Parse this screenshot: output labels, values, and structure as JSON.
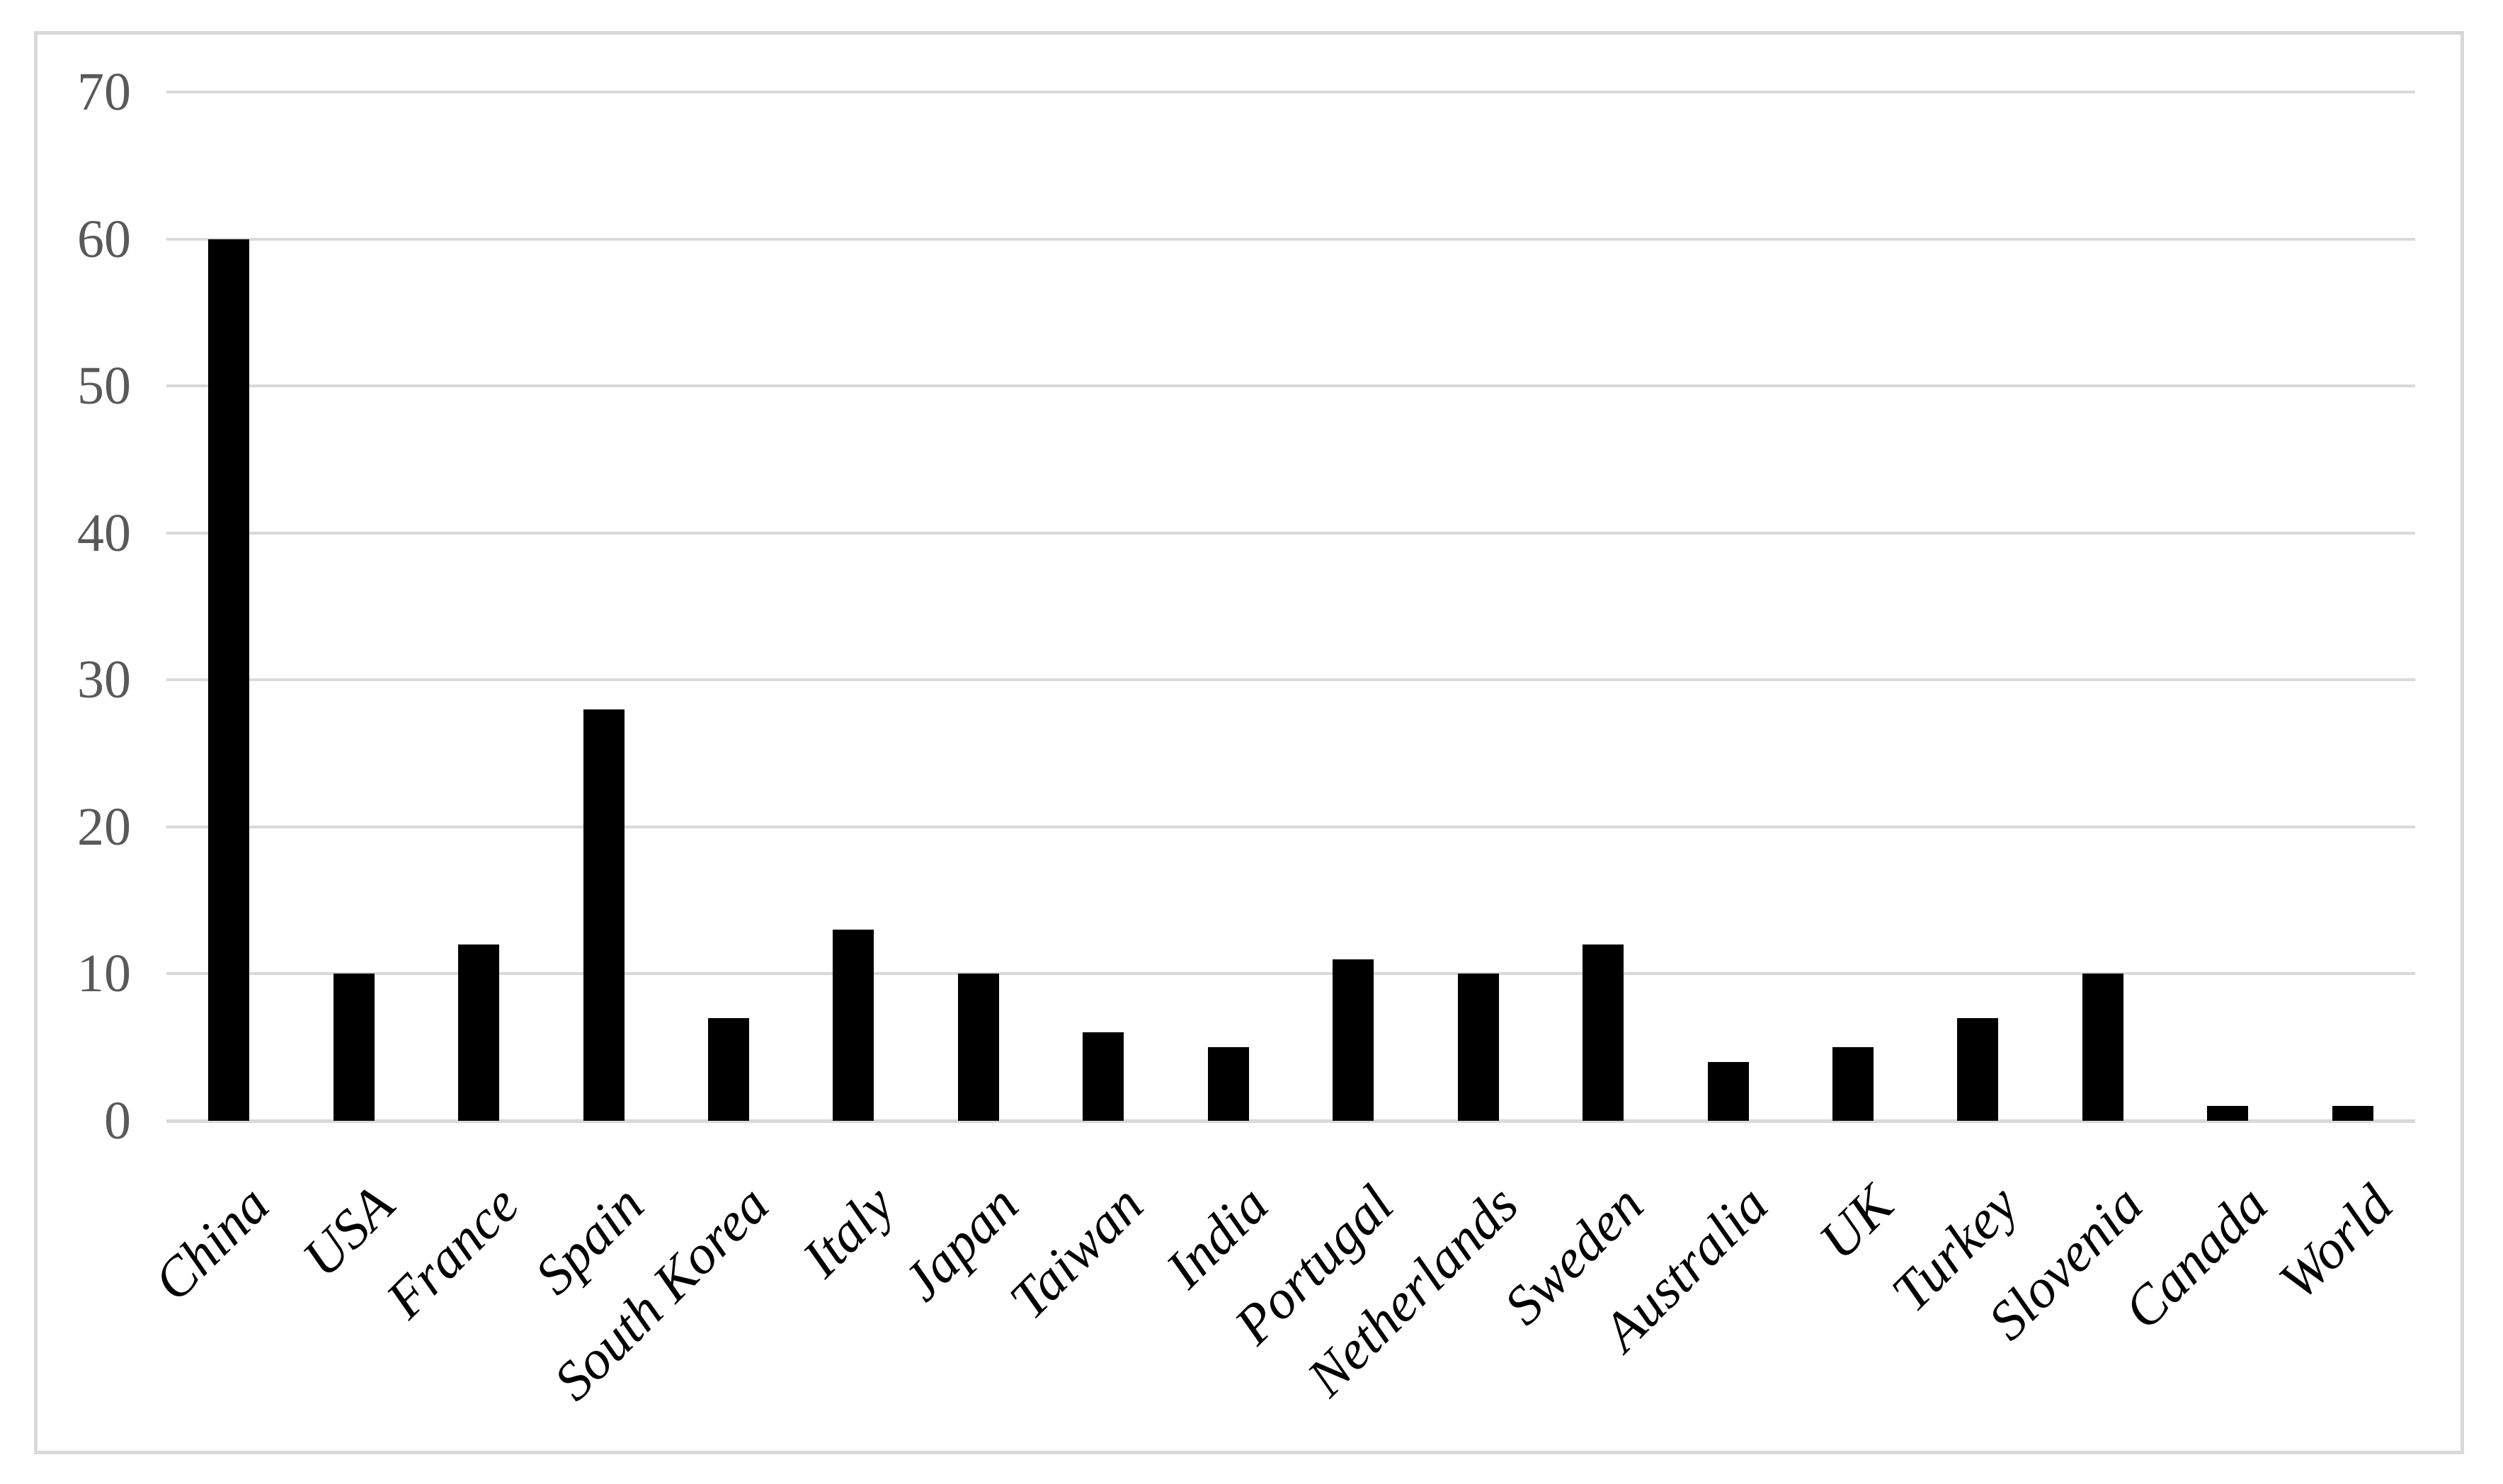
{
  "chart_data": {
    "type": "bar",
    "title": "",
    "xlabel": "",
    "ylabel": "",
    "categories": [
      "China",
      "USA",
      "France",
      "Spain",
      "South Korea",
      "Italy",
      "Japan",
      "Taiwan",
      "India",
      "Portugal",
      "Netherlands",
      "Sweden",
      "Australia",
      "UK",
      "Turkey",
      "Slovenia",
      "Canada",
      "World"
    ],
    "values": [
      60,
      10,
      12,
      28,
      7,
      13,
      10,
      6,
      5,
      11,
      10,
      12,
      4,
      5,
      7,
      10,
      1,
      1
    ],
    "ylim": [
      0,
      70
    ],
    "yticks": [
      0,
      10,
      20,
      30,
      40,
      50,
      60,
      70
    ],
    "grid": true,
    "legend": false,
    "bar_color": "#000000",
    "gridline_color": "#D9D9D9",
    "frame_color": "#D9D9D9",
    "axis_tick_label_color": "#595959",
    "category_label_color": "#000000",
    "category_label_style": "italic",
    "category_label_rotation_deg": 45,
    "background_color": "#FFFFFF"
  }
}
